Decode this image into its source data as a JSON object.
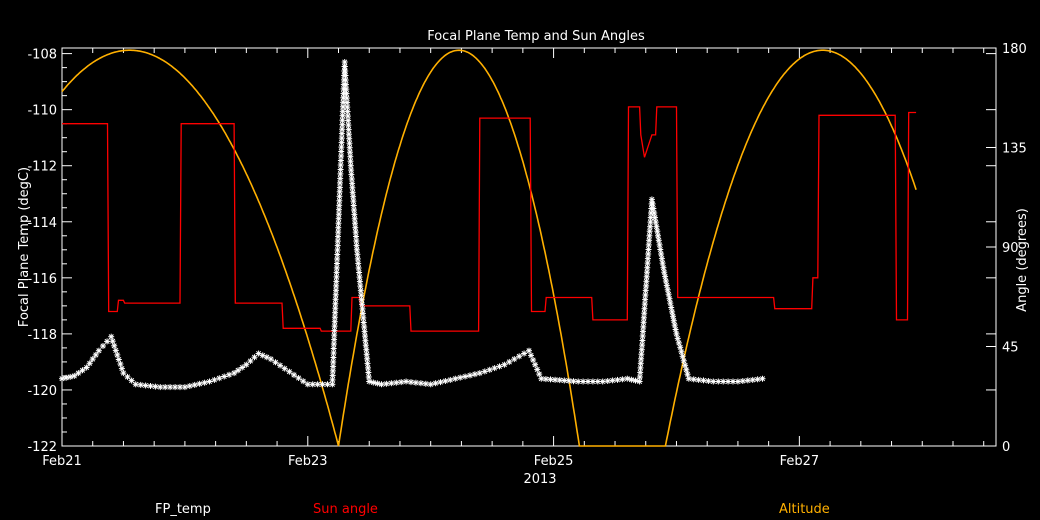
{
  "chart_data": {
    "type": "line",
    "title": "Focal Plane Temp and Sun Angles",
    "xlabel": "2013",
    "ylabel_left": "Focal Plane Temp (degC)",
    "ylabel_right": "Angle (degrees)",
    "x_ticks": [
      "Feb21",
      "Feb23",
      "Feb25",
      "Feb27"
    ],
    "xlim_days": [
      21.0,
      28.6
    ],
    "ylim_left": [
      -122,
      -107.8
    ],
    "ylim_right": [
      0,
      180
    ],
    "left_ticks": [
      "-108",
      "-110",
      "-112",
      "-114",
      "-116",
      "-118",
      "-120",
      "-122"
    ],
    "right_ticks": [
      "180",
      "135",
      "90",
      "45",
      "0"
    ],
    "grid": false,
    "colors": {
      "fp_temp": "#ffffff",
      "sun_angle": "#ff0000",
      "altitude": "#ffb000",
      "axes": "#ffffff"
    },
    "series": [
      {
        "name": "FP_temp",
        "axis": "left",
        "style": "asterisk",
        "points": [
          [
            21.0,
            -119.6
          ],
          [
            21.1,
            -119.5
          ],
          [
            21.2,
            -119.2
          ],
          [
            21.3,
            -118.6
          ],
          [
            21.4,
            -118.1
          ],
          [
            21.5,
            -119.4
          ],
          [
            21.6,
            -119.8
          ],
          [
            21.8,
            -119.9
          ],
          [
            22.0,
            -119.9
          ],
          [
            22.2,
            -119.7
          ],
          [
            22.4,
            -119.4
          ],
          [
            22.5,
            -119.1
          ],
          [
            22.6,
            -118.7
          ],
          [
            22.7,
            -118.9
          ],
          [
            23.0,
            -119.8
          ],
          [
            23.2,
            -119.8
          ],
          [
            23.3,
            -108.3
          ],
          [
            23.35,
            -112.0
          ],
          [
            23.4,
            -115.0
          ],
          [
            23.5,
            -119.7
          ],
          [
            23.6,
            -119.8
          ],
          [
            23.8,
            -119.7
          ],
          [
            24.0,
            -119.8
          ],
          [
            24.2,
            -119.6
          ],
          [
            24.4,
            -119.4
          ],
          [
            24.6,
            -119.1
          ],
          [
            24.8,
            -118.6
          ],
          [
            24.9,
            -119.6
          ],
          [
            25.2,
            -119.7
          ],
          [
            25.4,
            -119.7
          ],
          [
            25.6,
            -119.6
          ],
          [
            25.7,
            -119.7
          ],
          [
            25.8,
            -113.2
          ],
          [
            25.9,
            -115.8
          ],
          [
            26.0,
            -118.0
          ],
          [
            26.1,
            -119.6
          ],
          [
            26.3,
            -119.7
          ],
          [
            26.5,
            -119.7
          ],
          [
            26.7,
            -119.6
          ]
        ]
      },
      {
        "name": "Sun angle",
        "axis": "left",
        "style": "line",
        "points": [
          [
            21.0,
            -110.5
          ],
          [
            21.37,
            -110.5
          ],
          [
            21.38,
            -117.2
          ],
          [
            21.45,
            -117.2
          ],
          [
            21.46,
            -116.8
          ],
          [
            21.5,
            -116.8
          ],
          [
            21.51,
            -116.9
          ],
          [
            21.96,
            -116.9
          ],
          [
            21.97,
            -110.5
          ],
          [
            22.4,
            -110.5
          ],
          [
            22.41,
            -116.9
          ],
          [
            22.79,
            -116.9
          ],
          [
            22.8,
            -117.8
          ],
          [
            23.1,
            -117.8
          ],
          [
            23.11,
            -117.9
          ],
          [
            23.35,
            -117.9
          ],
          [
            23.36,
            -116.7
          ],
          [
            23.42,
            -116.7
          ],
          [
            23.43,
            -117.0
          ],
          [
            23.83,
            -117.0
          ],
          [
            23.84,
            -117.9
          ],
          [
            24.39,
            -117.9
          ],
          [
            24.4,
            -110.3
          ],
          [
            24.81,
            -110.3
          ],
          [
            24.82,
            -117.2
          ],
          [
            24.93,
            -117.2
          ],
          [
            24.94,
            -116.7
          ],
          [
            25.31,
            -116.7
          ],
          [
            25.32,
            -117.5
          ],
          [
            25.6,
            -117.5
          ],
          [
            25.61,
            -109.9
          ],
          [
            25.7,
            -109.9
          ],
          [
            25.71,
            -110.9
          ],
          [
            25.74,
            -111.7
          ],
          [
            25.77,
            -111.3
          ],
          [
            25.8,
            -110.9
          ],
          [
            25.83,
            -110.9
          ],
          [
            25.84,
            -109.9
          ],
          [
            26.0,
            -109.9
          ],
          [
            26.01,
            -116.7
          ],
          [
            26.79,
            -116.7
          ],
          [
            26.8,
            -117.1
          ],
          [
            27.1,
            -117.1
          ],
          [
            27.11,
            -116.0
          ],
          [
            27.15,
            -116.0
          ],
          [
            27.16,
            -110.2
          ],
          [
            27.78,
            -110.2
          ],
          [
            27.79,
            -117.5
          ],
          [
            27.88,
            -117.5
          ],
          [
            27.89,
            -110.1
          ],
          [
            27.95,
            -110.1
          ]
        ]
      },
      {
        "name": "Altitude",
        "axis": "right",
        "style": "line",
        "peaks": [
          [
            21.55,
            179
          ],
          [
            24.23,
            179
          ],
          [
            27.19,
            179
          ]
        ],
        "minima": [
          [
            23.25,
            0
          ],
          [
            25.91,
            0
          ]
        ],
        "ends": [
          [
            21.0,
            117
          ],
          [
            27.95,
            117
          ]
        ]
      }
    ]
  },
  "legend": {
    "fp_temp": "FP_temp",
    "sun_angle": "Sun angle",
    "altitude": "Altitude"
  }
}
